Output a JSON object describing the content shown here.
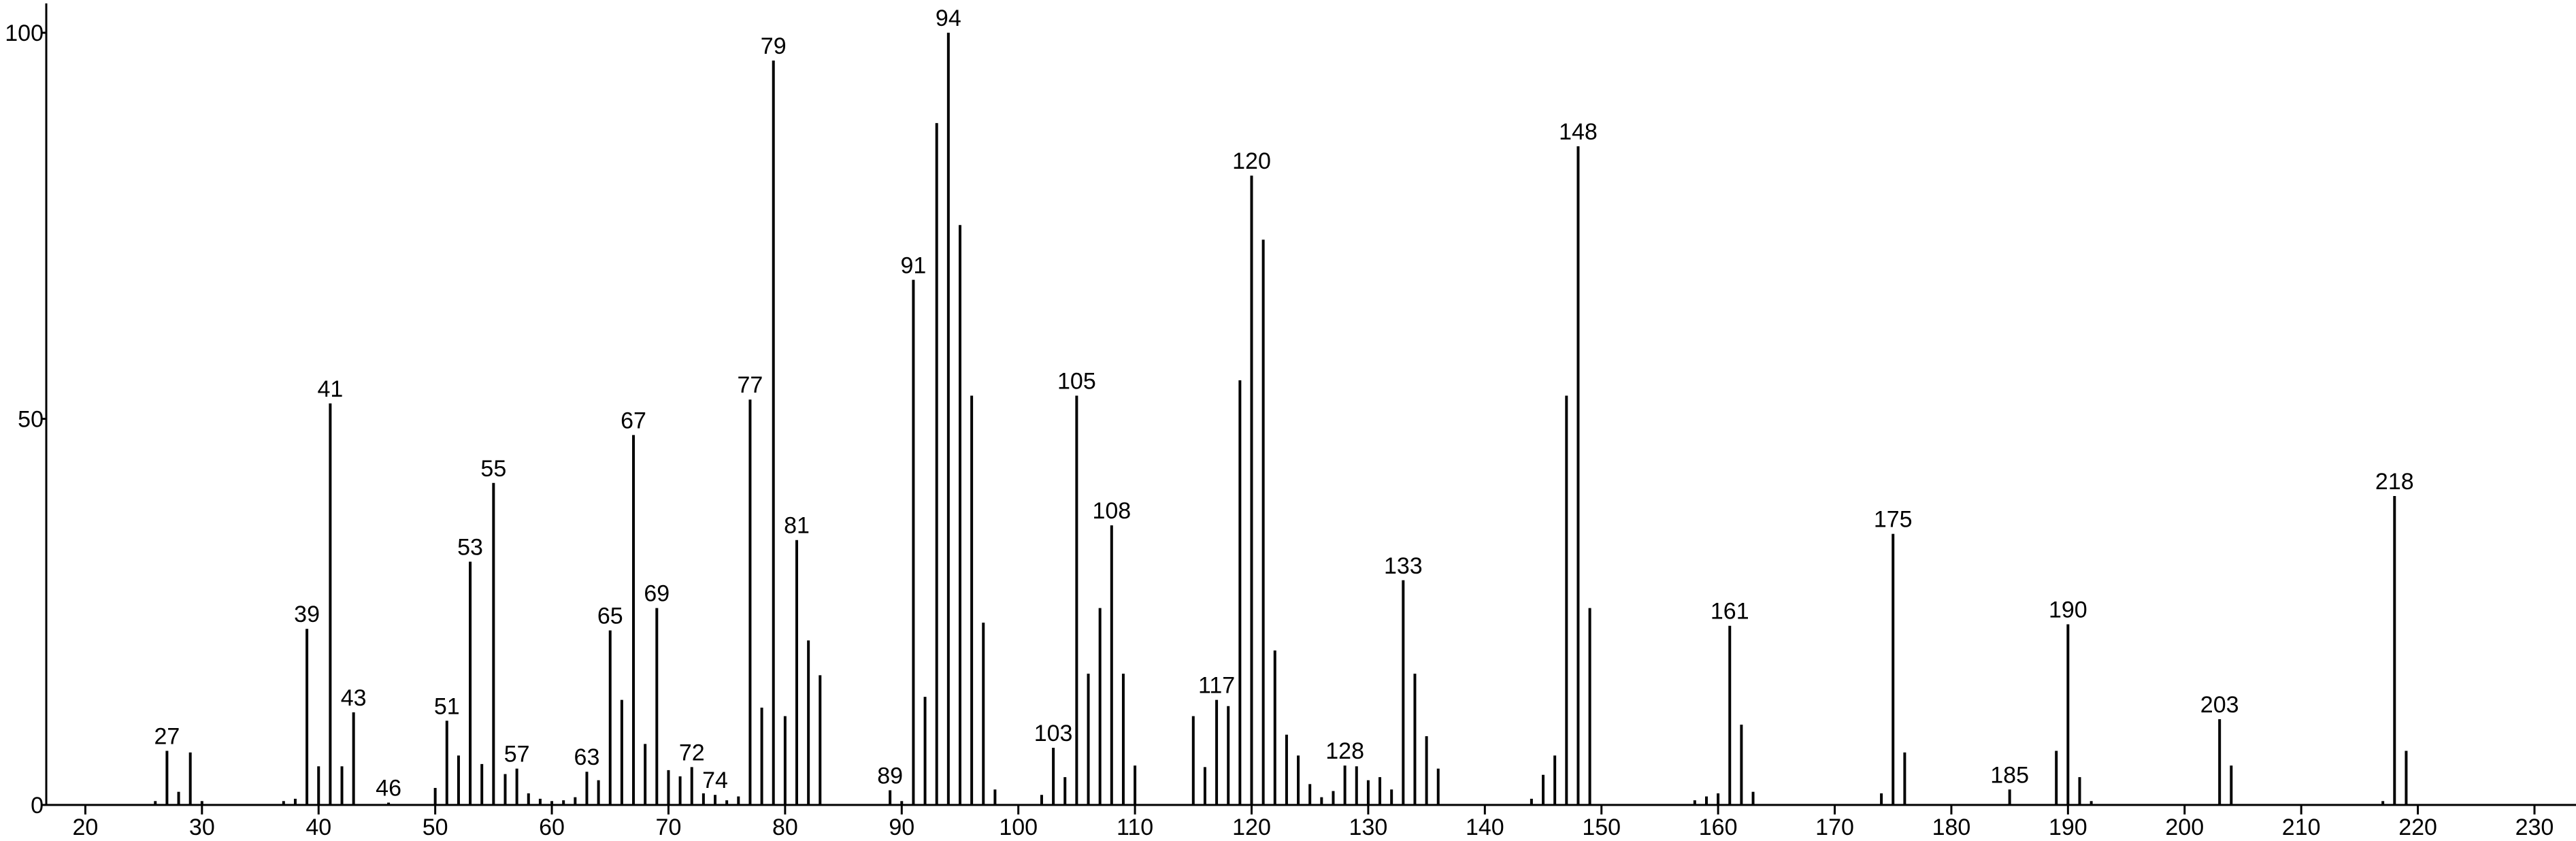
{
  "chart_data": {
    "type": "spectrum",
    "x": [
      26,
      27,
      28,
      29,
      30,
      37,
      38,
      39,
      40,
      41,
      42,
      43,
      46,
      50,
      51,
      52,
      53,
      54,
      55,
      56,
      57,
      58,
      59,
      60,
      61,
      62,
      63,
      64,
      65,
      66,
      67,
      68,
      69,
      70,
      71,
      72,
      73,
      74,
      75,
      76,
      77,
      78,
      79,
      80,
      81,
      82,
      83,
      89,
      90,
      91,
      92,
      93,
      94,
      95,
      96,
      97,
      98,
      102,
      103,
      104,
      105,
      106,
      107,
      108,
      109,
      110,
      115,
      116,
      117,
      118,
      119,
      120,
      121,
      122,
      123,
      124,
      125,
      126,
      127,
      128,
      129,
      130,
      131,
      132,
      133,
      134,
      135,
      136,
      144,
      145,
      146,
      147,
      148,
      149,
      158,
      159,
      160,
      161,
      162,
      163,
      174,
      175,
      176,
      185,
      189,
      190,
      191,
      192,
      203,
      204,
      217,
      218,
      219
    ],
    "values": [
      0.5,
      7,
      1.7,
      6.8,
      0.5,
      0.5,
      0.8,
      22.8,
      5,
      52,
      5,
      12,
      0.3,
      2.2,
      10.9,
      6.4,
      31.5,
      5.3,
      41.7,
      4,
      4.7,
      1.5,
      0.8,
      0.5,
      0.6,
      1,
      4.3,
      3.2,
      22.6,
      13.6,
      47.9,
      7.9,
      25.5,
      4.5,
      3.7,
      4.9,
      1.5,
      1.3,
      0.6,
      1.1,
      52.5,
      12.6,
      96.4,
      11.5,
      34.3,
      21.3,
      16.8,
      1.9,
      0.5,
      68,
      14,
      88.3,
      100,
      75.1,
      53,
      23.6,
      2,
      1.3,
      7.4,
      3.6,
      53,
      17,
      25.5,
      36.2,
      17,
      5.1,
      11.5,
      4.9,
      13.6,
      12.8,
      55,
      81.5,
      73.2,
      20,
      9.1,
      6.4,
      2.7,
      1,
      1.8,
      5.1,
      5,
      3.2,
      3.6,
      2,
      29.1,
      17,
      8.9,
      4.7,
      0.8,
      3.9,
      6.4,
      53,
      85.3,
      25.5,
      0.6,
      1.1,
      1.5,
      23.2,
      10.4,
      1.7,
      1.5,
      35.1,
      6.8,
      2,
      7,
      23.4,
      3.6,
      0.5,
      11.1,
      5.1,
      0.5,
      40,
      7
    ],
    "peak_labels": [
      27,
      39,
      41,
      43,
      46,
      51,
      53,
      55,
      57,
      63,
      65,
      67,
      69,
      72,
      74,
      77,
      79,
      81,
      89,
      91,
      94,
      103,
      105,
      108,
      117,
      120,
      128,
      133,
      148,
      161,
      175,
      185,
      190,
      203,
      218
    ],
    "color": "#000000",
    "xlim": [
      16.65,
      233.56
    ],
    "xticks": [
      20,
      30,
      40,
      50,
      60,
      70,
      80,
      90,
      100,
      110,
      120,
      130,
      140,
      150,
      160,
      170,
      180,
      190,
      200,
      210,
      220,
      230
    ],
    "ylim": [
      0,
      103.8
    ],
    "yticks": [
      0,
      50,
      100
    ]
  }
}
